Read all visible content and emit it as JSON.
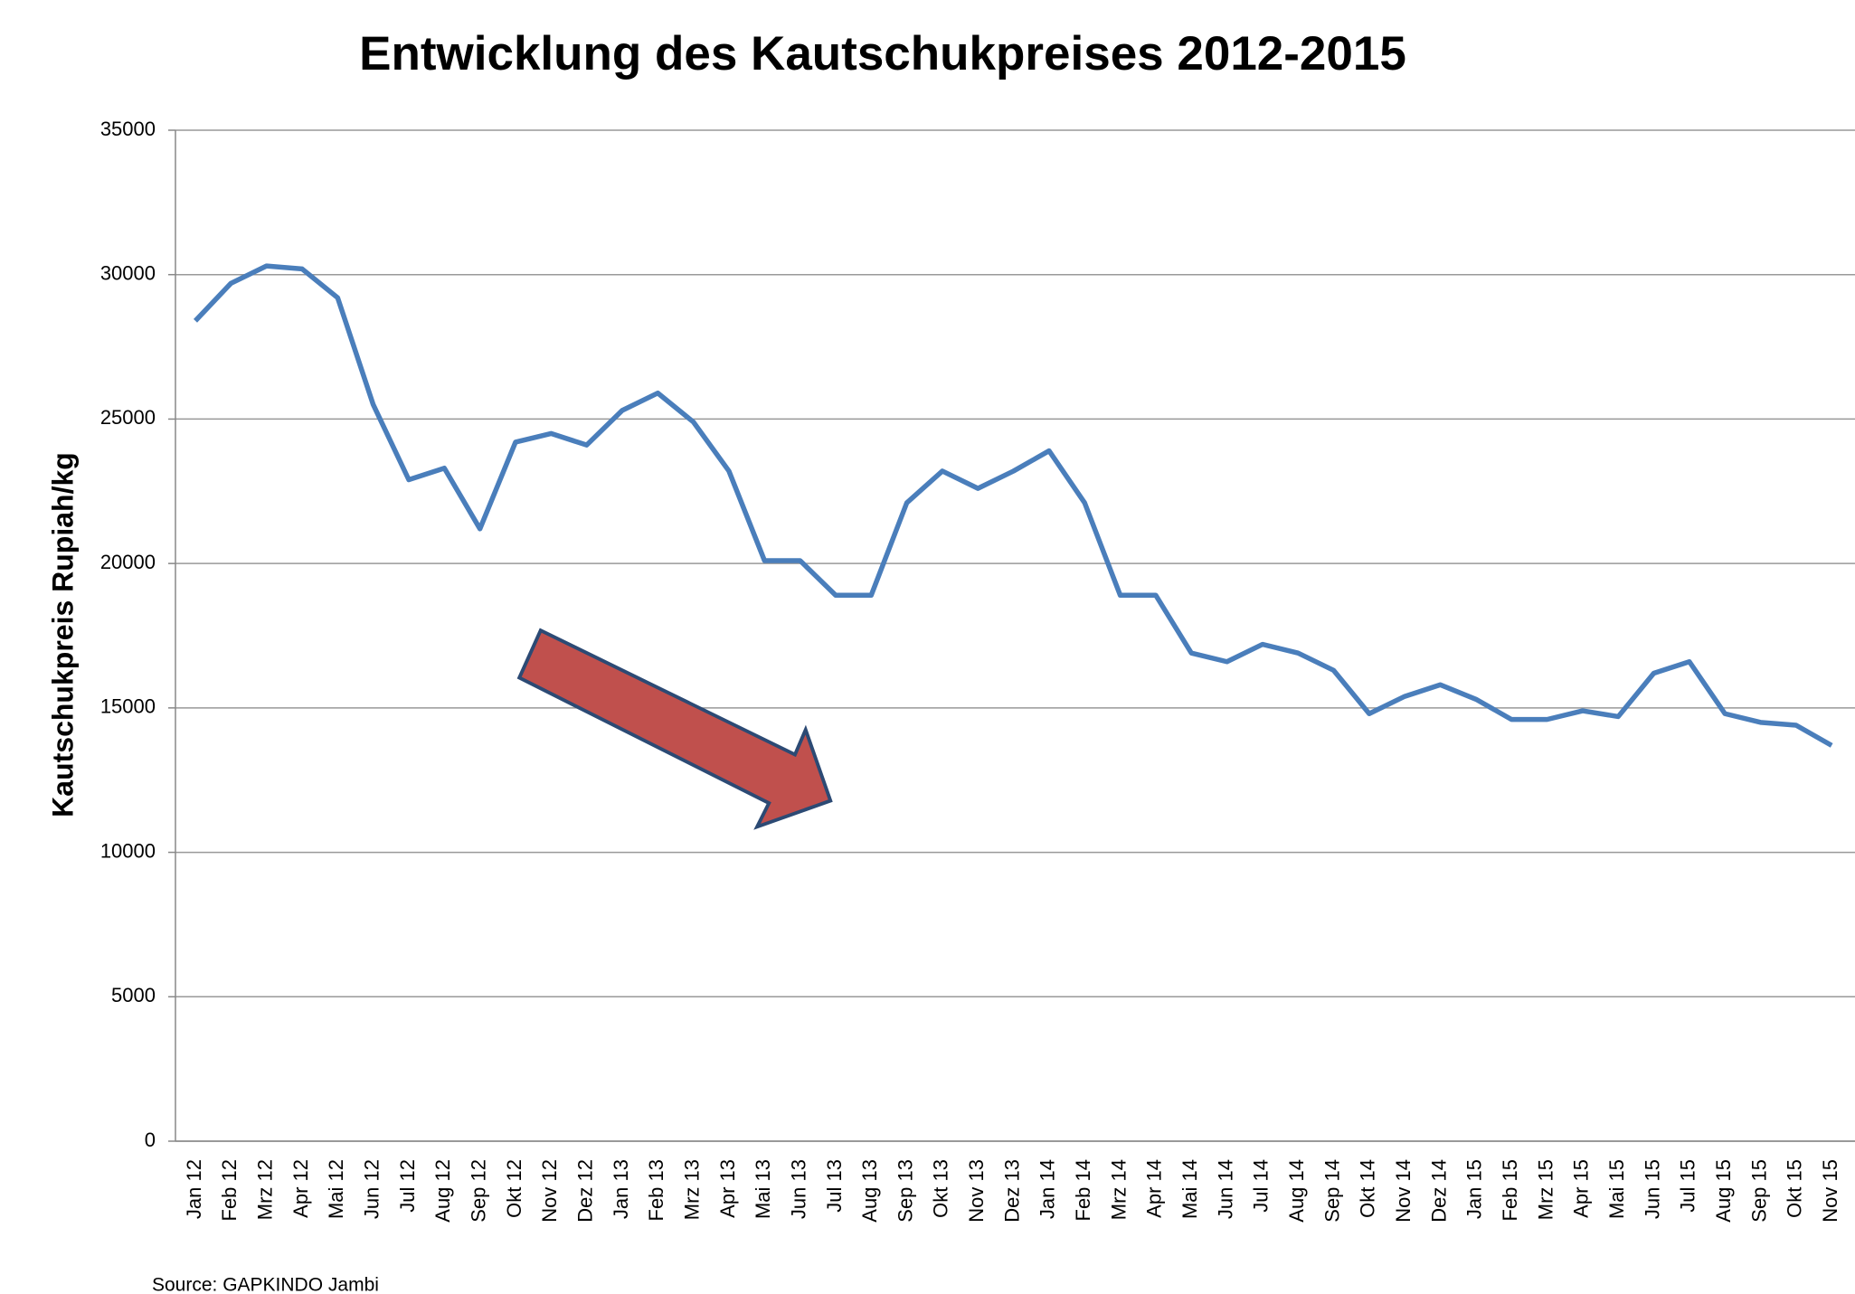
{
  "chart_data": {
    "type": "line",
    "title": "Entwicklung des Kautschukpreises 2012-2015",
    "y_label": "Kautschukpreis Rupiah/kg",
    "source": "Source: GAPKINDO Jambi",
    "categories": [
      "Jan 12",
      "Feb 12",
      "Mrz 12",
      "Apr 12",
      "Mai 12",
      "Jun 12",
      "Jul 12",
      "Aug 12",
      "Sep 12",
      "Okt 12",
      "Nov 12",
      "Dez 12",
      "Jan 13",
      "Feb 13",
      "Mrz 13",
      "Apr 13",
      "Mai 13",
      "Jun 13",
      "Jul 13",
      "Aug 13",
      "Sep 13",
      "Okt 13",
      "Nov 13",
      "Dez 13",
      "Jan 14",
      "Feb 14",
      "Mrz 14",
      "Apr 14",
      "Mai 14",
      "Jun 14",
      "Jul 14",
      "Aug 14",
      "Sep 14",
      "Okt 14",
      "Nov 14",
      "Dez 14",
      "Jan 15",
      "Feb 15",
      "Mrz 15",
      "Apr 15",
      "Mai 15",
      "Jun 15",
      "Jul 15",
      "Aug 15",
      "Sep 15",
      "Okt 15",
      "Nov 15"
    ],
    "values": [
      28400,
      29700,
      30300,
      30200,
      29200,
      25500,
      22900,
      23300,
      21200,
      24200,
      24500,
      24100,
      25300,
      25900,
      24900,
      23200,
      20100,
      20100,
      18900,
      18900,
      22100,
      23200,
      22600,
      23200,
      23900,
      22100,
      18900,
      18900,
      16900,
      16600,
      17200,
      16900,
      16300,
      14800,
      15400,
      15800,
      15300,
      14600,
      14600,
      14900,
      14700,
      16200,
      16600,
      14800,
      14500,
      14400,
      13700
    ],
    "color": "#4a7ebb",
    "ylim": [
      0,
      35000
    ],
    "yticks": [
      0,
      5000,
      10000,
      15000,
      20000,
      25000,
      30000,
      35000
    ],
    "grid": true
  }
}
